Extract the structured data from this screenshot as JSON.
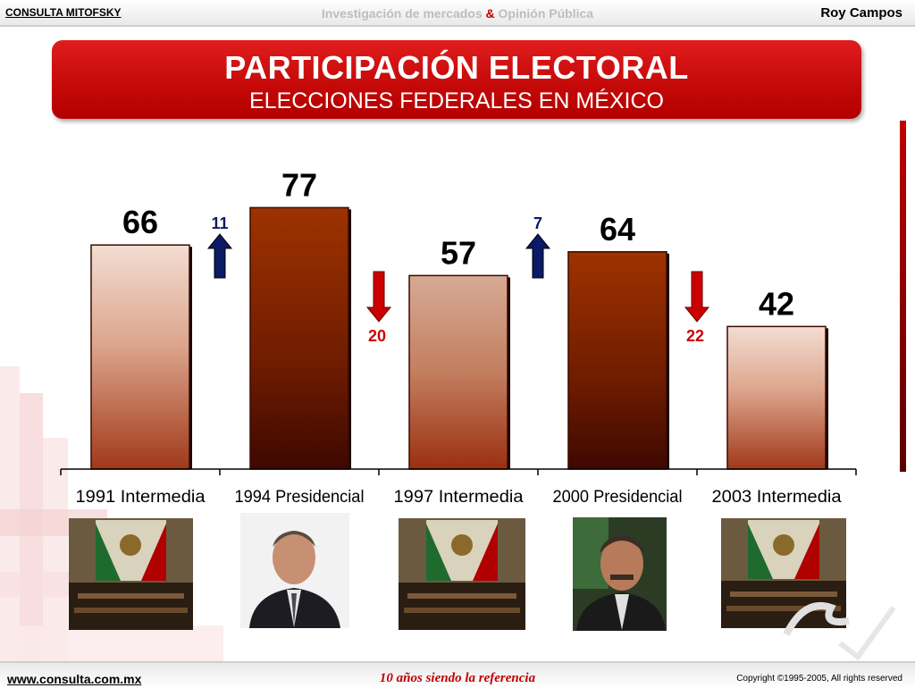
{
  "header": {
    "brand": "CONSULTA MITOFSKY",
    "tagline_part1": "Investigación de mercados ",
    "tagline_amp": "&",
    "tagline_part2": " Opinión Pública",
    "author": "Roy Campos"
  },
  "footer": {
    "site": "www.consulta.com.mx",
    "motto": "10 años siendo la referencia",
    "copyright": "Copyright ©1995-2005, All rights reserved"
  },
  "chart_data": {
    "type": "bar",
    "title": "PARTICIPACIÓN ELECTORAL",
    "subtitle": "ELECCIONES FEDERALES EN MÉXICO",
    "categories": [
      "1991 Intermedia",
      "1994 Presidencial",
      "1997 Intermedia",
      "2000 Presidencial",
      "2003 Intermedia"
    ],
    "values": [
      66,
      77,
      57,
      64,
      42
    ],
    "changes": [
      {
        "between": [
          "1991 Intermedia",
          "1994 Presidencial"
        ],
        "value": "11",
        "direction": "up"
      },
      {
        "between": [
          "1994 Presidencial",
          "1997 Intermedia"
        ],
        "value": "20",
        "direction": "down"
      },
      {
        "between": [
          "1997 Intermedia",
          "2000 Presidencial"
        ],
        "value": "7",
        "direction": "up"
      },
      {
        "between": [
          "2000 Presidencial",
          "2003 Intermedia"
        ],
        "value": "22",
        "direction": "down"
      }
    ],
    "ylim": [
      0,
      100
    ],
    "grid": false,
    "colors": {
      "intermedia": "#e9c9b6",
      "presidencial": "#993300",
      "up_arrow": "#0b1a66",
      "down_arrow": "#cc0000"
    }
  },
  "photos": [
    {
      "name": "chamber-photo-1991",
      "kind": "congress"
    },
    {
      "name": "president-photo-1994",
      "kind": "portrait"
    },
    {
      "name": "chamber-photo-1997",
      "kind": "congress"
    },
    {
      "name": "president-photo-2000",
      "kind": "portrait"
    },
    {
      "name": "chamber-photo-2003",
      "kind": "congress"
    }
  ]
}
